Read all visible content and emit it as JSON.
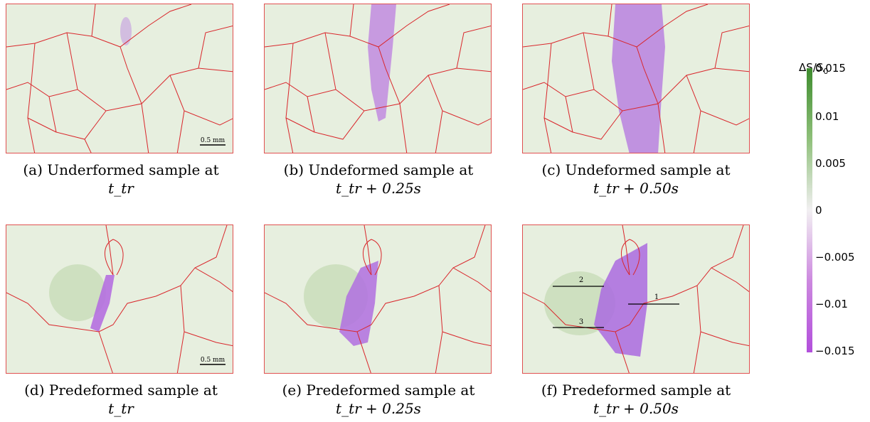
{
  "panels": [
    {
      "id": "a",
      "label": "(a)",
      "line1": "Underformed sample at",
      "line2": "t_tr",
      "scale_bar": "0.5 mm"
    },
    {
      "id": "b",
      "label": "(b)",
      "line1": "Undeformed sample at",
      "line2": "t_tr + 0.25s"
    },
    {
      "id": "c",
      "label": "(c)",
      "line1": "Undeformed sample at",
      "line2": "t_tr + 0.50s"
    },
    {
      "id": "d",
      "label": "(d)",
      "line1": "Predeformed sample at",
      "line2": "t_tr",
      "scale_bar": "0.5 mm"
    },
    {
      "id": "e",
      "label": "(e)",
      "line1": "Predeformed sample at",
      "line2": "t_tr + 0.25s"
    },
    {
      "id": "f",
      "label": "(f)",
      "line1": "Predeformed sample at",
      "line2": "t_tr + 0.50s",
      "line_labels": [
        "1",
        "2",
        "3"
      ]
    }
  ],
  "colorbar": {
    "title": "ΔS/S",
    "title_sub": "0",
    "ticks": [
      "0.015",
      "0.01",
      "0.005",
      "0",
      "−0.005",
      "−0.01",
      "−0.015"
    ],
    "colors": {
      "max": "#3e8c2e",
      "zero": "#f2f0f2",
      "min": "#b24fdc"
    }
  }
}
